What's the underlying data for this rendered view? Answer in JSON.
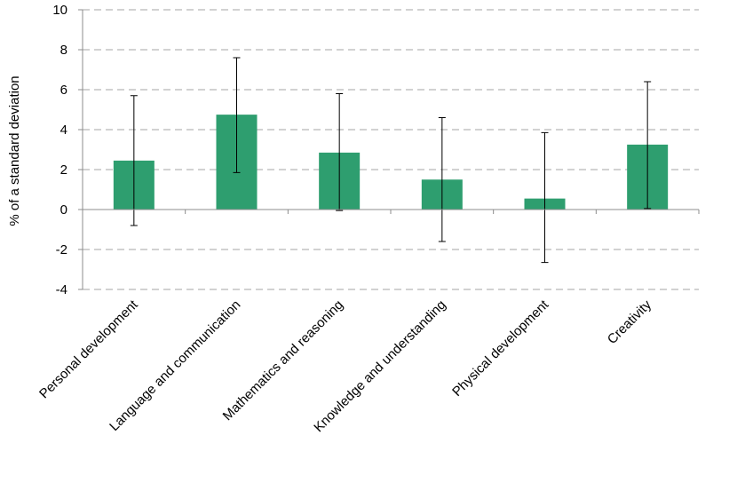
{
  "chart_data": {
    "type": "bar",
    "title": "",
    "xlabel": "",
    "ylabel": "% of a standard deviation",
    "ylim": [
      -4,
      10
    ],
    "yticks": [
      10,
      8,
      6,
      4,
      2,
      0,
      -2,
      -4
    ],
    "ytick_labels": [
      "10",
      "8",
      "6",
      "4",
      "2",
      "0",
      "-2",
      "-4"
    ],
    "grid": true,
    "categories": [
      "Personal development",
      "Language and communication",
      "Mathematics and reasoning",
      "Knowledge and understanding",
      "Physical development",
      "Creativity"
    ],
    "series": [
      {
        "name": "Effect",
        "values": [
          2.45,
          4.75,
          2.85,
          1.5,
          0.55,
          3.25
        ],
        "error_low": [
          -0.8,
          1.85,
          -0.05,
          -1.6,
          -2.65,
          0.05
        ],
        "error_high": [
          5.7,
          7.6,
          5.8,
          4.6,
          3.85,
          6.4
        ]
      }
    ]
  },
  "colors": {
    "bar": "#2e9e6f",
    "grid": "#a6a6a6",
    "axis": "#8c8c8c",
    "error": "#000000"
  }
}
